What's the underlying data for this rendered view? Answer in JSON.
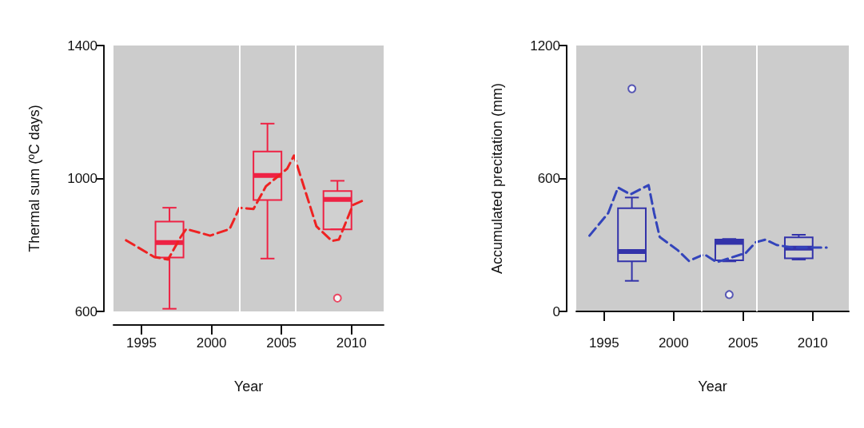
{
  "chart_data": [
    {
      "type": "box",
      "xlabel": "Year",
      "ylabel": "Thermal sum (ºC days)",
      "xlim": [
        1993,
        2012.3
      ],
      "ylim": [
        600,
        1400
      ],
      "xticks": [
        1995,
        2000,
        2005,
        2010
      ],
      "yticks": [
        600,
        1000,
        1400
      ],
      "grid": false,
      "ref_lines": [
        {
          "axis": "x",
          "value": 2002,
          "label": null,
          "color": "#ffffff"
        },
        {
          "axis": "x",
          "value": 2006,
          "label": null,
          "color": "#ffffff"
        }
      ],
      "series": [
        {
          "type": "box",
          "color": "#ee2244",
          "x": [
            1997,
            2004,
            2009
          ],
          "boxes": [
            {
              "low": 608,
              "q1": 762,
              "median": 807,
              "q3": 870,
              "high": 912
            },
            {
              "low": 759,
              "q1": 935,
              "median": 1009,
              "q3": 1081,
              "high": 1165
            },
            {
              "low": 847,
              "q1": 847,
              "median": 937,
              "q3": 962,
              "high": 993,
              "outliers": [
                640
              ]
            }
          ]
        },
        {
          "type": "line",
          "color": "#ee2222",
          "line_style": "dashed",
          "marker": "none",
          "x": [
            1993.9,
            1995.9,
            1996.9,
            1997.8,
            1998.2,
            1999.9,
            2001.3,
            2002.0,
            2003.0,
            2003.9,
            2005.4,
            2005.9,
            2007.5,
            2008.6,
            2009.1,
            2010.1,
            2011.0
          ],
          "values": [
            814,
            764,
            756,
            824,
            848,
            828,
            848,
            912,
            908,
            977,
            1029,
            1069,
            856,
            812,
            816,
            920,
            937
          ]
        }
      ]
    },
    {
      "type": "box",
      "xlabel": "Year",
      "ylabel": "Accumulated precitation (mm)",
      "xlim": [
        1993,
        2012.6
      ],
      "ylim": [
        0,
        1200
      ],
      "xticks": [
        1995,
        2000,
        2005,
        2010
      ],
      "yticks": [
        0,
        600,
        1200
      ],
      "grid": false,
      "ref_lines": [
        {
          "axis": "x",
          "value": 2002,
          "label": null,
          "color": "#ffffff"
        },
        {
          "axis": "x",
          "value": 2006,
          "label": null,
          "color": "#ffffff"
        }
      ],
      "series": [
        {
          "type": "box",
          "color": "#3333aa",
          "x": [
            1997,
            2004,
            2009
          ],
          "boxes": [
            {
              "low": 138,
              "q1": 226,
              "median": 270,
              "q3": 466,
              "high": 514,
              "outliers": [
                1005
              ]
            },
            {
              "low": 226,
              "q1": 231,
              "median": 312,
              "q3": 324,
              "high": 327,
              "outliers": [
                76
              ]
            },
            {
              "low": 234,
              "q1": 240,
              "median": 286,
              "q3": 334,
              "high": 346
            }
          ]
        },
        {
          "type": "line",
          "color": "#3344bb",
          "line_style": "dashed",
          "marker": "none",
          "x": [
            1993.95,
            1995.3,
            1996.0,
            1996.9,
            1998.2,
            1998.6,
            1999.0,
            2000.3,
            2001.1,
            2002.2,
            2003.1,
            2005.2,
            2005.9,
            2006.6,
            2007.4,
            2008.5,
            2011.0
          ],
          "values": [
            342,
            444,
            559,
            528,
            570,
            444,
            336,
            276,
            228,
            258,
            222,
            264,
            312,
            324,
            300,
            288,
            288
          ]
        }
      ]
    }
  ]
}
